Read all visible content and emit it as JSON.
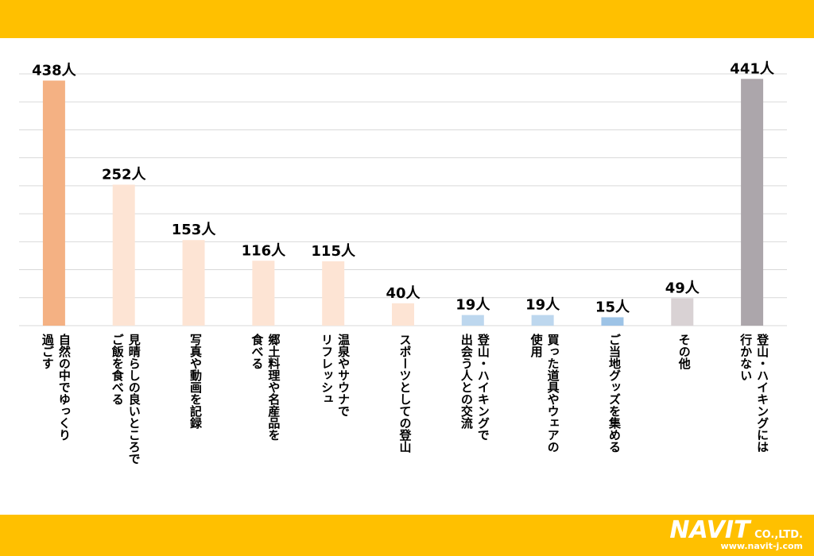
{
  "chart_data": {
    "type": "bar",
    "categories": [
      "自然の中でゆっくり\n過ごす",
      "見晴らしの良いところで\nご飯を食べる",
      "写真や動画を記録",
      "郷土料理や名産品を\n食べる",
      "温泉やサウナで\nリフレッシュ",
      "スポーツとしての登山",
      "登山・ハイキングで\n出会う人との交流",
      "買った道具やウェアの\n使用",
      "ご当地グッズを集める",
      "その他",
      "登山・ハイキングには\n行かない"
    ],
    "values": [
      438,
      252,
      153,
      116,
      115,
      40,
      19,
      19,
      15,
      49,
      441
    ],
    "value_labels": [
      "438人",
      "252人",
      "153人",
      "116人",
      "115人",
      "40人",
      "19人",
      "19人",
      "15人",
      "49人",
      "441人"
    ],
    "colors": [
      "#f4b183",
      "#fde4d4",
      "#fde4d4",
      "#fde4d4",
      "#fde4d4",
      "#fde4d4",
      "#bdd7ee",
      "#bdd7ee",
      "#9dc3e6",
      "#d9d2d4",
      "#aca6ab"
    ],
    "ylim": [
      0,
      450
    ],
    "yticks": [
      0,
      50,
      100,
      150,
      200,
      250,
      300,
      350,
      400,
      450
    ],
    "grid": true
  },
  "footer": {
    "logo": "NAVIT",
    "company": "CO.,LTD.",
    "url": "www.navit-j.com"
  }
}
